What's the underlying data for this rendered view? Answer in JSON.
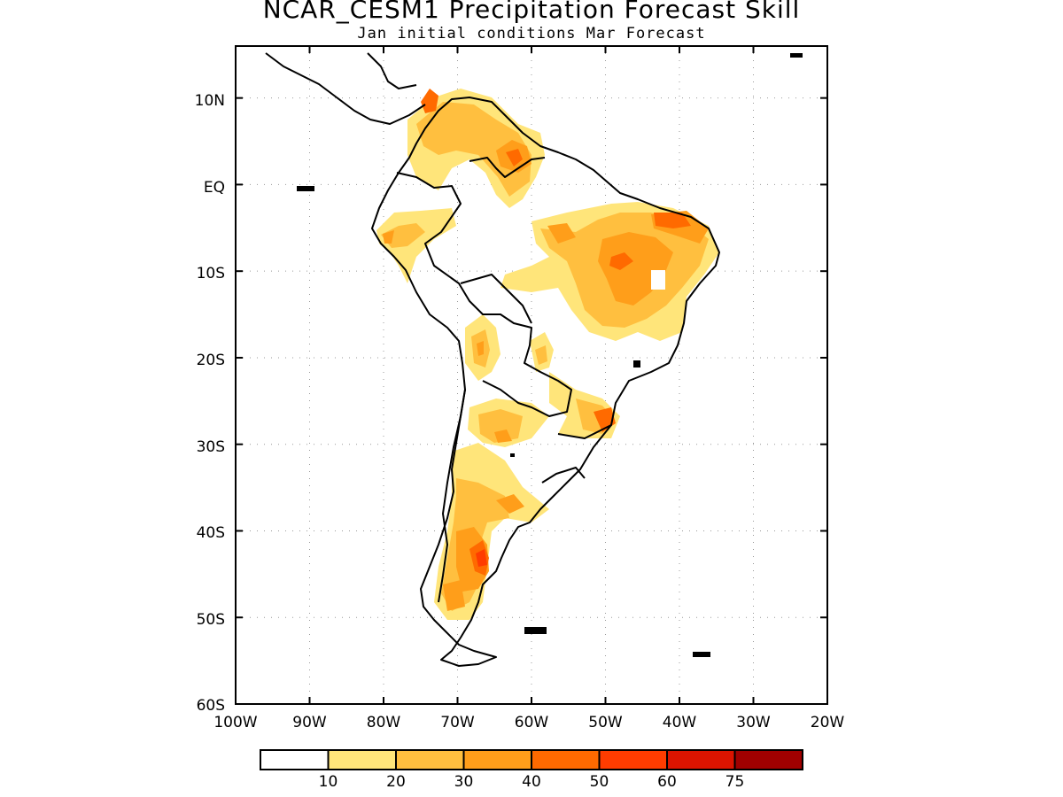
{
  "title": "NCAR_CESM1 Precipitation Forecast Skill",
  "subtitle": "Jan initial conditions  Mar Forecast",
  "map": {
    "lon_range": [
      -100,
      -20
    ],
    "lat_range": [
      -60,
      16
    ],
    "lon_ticks": [
      "100W",
      "90W",
      "80W",
      "70W",
      "60W",
      "50W",
      "40W",
      "30W",
      "20W"
    ],
    "lat_ticks": [
      "10N",
      "EQ",
      "10S",
      "20S",
      "30S",
      "40S",
      "50S",
      "60S"
    ],
    "gridlines": true
  },
  "legend": {
    "labels": [
      "10",
      "20",
      "30",
      "40",
      "50",
      "60",
      "75"
    ],
    "colors": [
      "#ffffff",
      "#ffe57a",
      "#ffbf3f",
      "#ff9e1a",
      "#ff6a00",
      "#ff3c00",
      "#db1400",
      "#a00000"
    ]
  }
}
